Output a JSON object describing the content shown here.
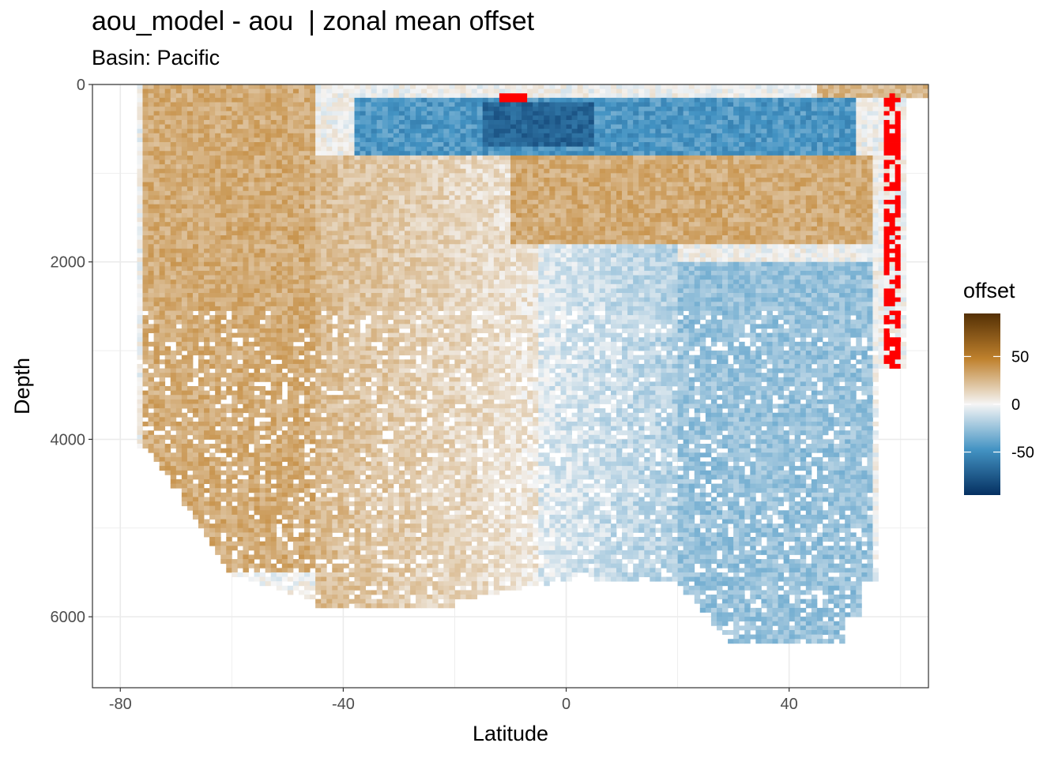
{
  "chart_data": {
    "type": "heatmap",
    "title": "aou_model - aou  | zonal mean offset",
    "subtitle": "Basin: Pacific",
    "xlabel": "Latitude",
    "ylabel": "Depth",
    "xlim": [
      -85,
      65
    ],
    "ylim": [
      6800,
      0
    ],
    "y_reversed": true,
    "x_ticks": [
      -80,
      -40,
      0,
      40
    ],
    "x_tick_labels": [
      "-80",
      "-40",
      "0",
      "40"
    ],
    "y_ticks": [
      0,
      2000,
      4000,
      6000
    ],
    "y_tick_labels": [
      "0",
      "2000",
      "4000",
      "6000"
    ],
    "grid": true,
    "legend": {
      "title": "offset",
      "position": "right",
      "ticks": [
        50,
        0,
        -50
      ],
      "tick_labels": [
        "50",
        "0",
        "-50"
      ],
      "range": [
        -95,
        95
      ],
      "colors": {
        "low": "#053061",
        "mid_low": "#4393c3",
        "mid": "#f5f5f5",
        "mid_high": "#bf812d",
        "high": "#543005"
      }
    },
    "out_of_range_color": "#ff0000",
    "regions": [
      {
        "name": "upper-ocean negative band (150-800 m, 35S-50N)",
        "lat": [
          -38,
          52
        ],
        "depth": [
          150,
          800
        ],
        "offset": -45
      },
      {
        "name": "equatorial strongest negative core",
        "lat": [
          -15,
          5
        ],
        "depth": [
          200,
          700
        ],
        "offset": -70
      },
      {
        "name": "intermediate positive band (800-1800 m, 10S-55N)",
        "lat": [
          -10,
          55
        ],
        "depth": [
          800,
          1800
        ],
        "offset": 30
      },
      {
        "name": "southern-ocean positive (0-5500 m, 75S-45S)",
        "lat": [
          -76,
          -45
        ],
        "depth": [
          0,
          5500
        ],
        "offset": 30
      },
      {
        "name": "southern deep positive (45S-5S)",
        "lat": [
          -45,
          -5
        ],
        "depth": [
          2000,
          6000
        ],
        "offset": 20
      },
      {
        "name": "northern deep negative (20N-55N)",
        "lat": [
          20,
          55
        ],
        "depth": [
          2000,
          6300
        ],
        "offset": -25
      },
      {
        "name": "high-latitude north out-of-range column (57N-60N)",
        "lat": [
          57,
          60
        ],
        "depth": [
          100,
          3200
        ],
        "offset": 120
      },
      {
        "name": "equatorial out-of-range cap (12S-7S)",
        "lat": [
          -12,
          -7
        ],
        "depth": [
          100,
          200
        ],
        "offset": 120
      }
    ]
  }
}
